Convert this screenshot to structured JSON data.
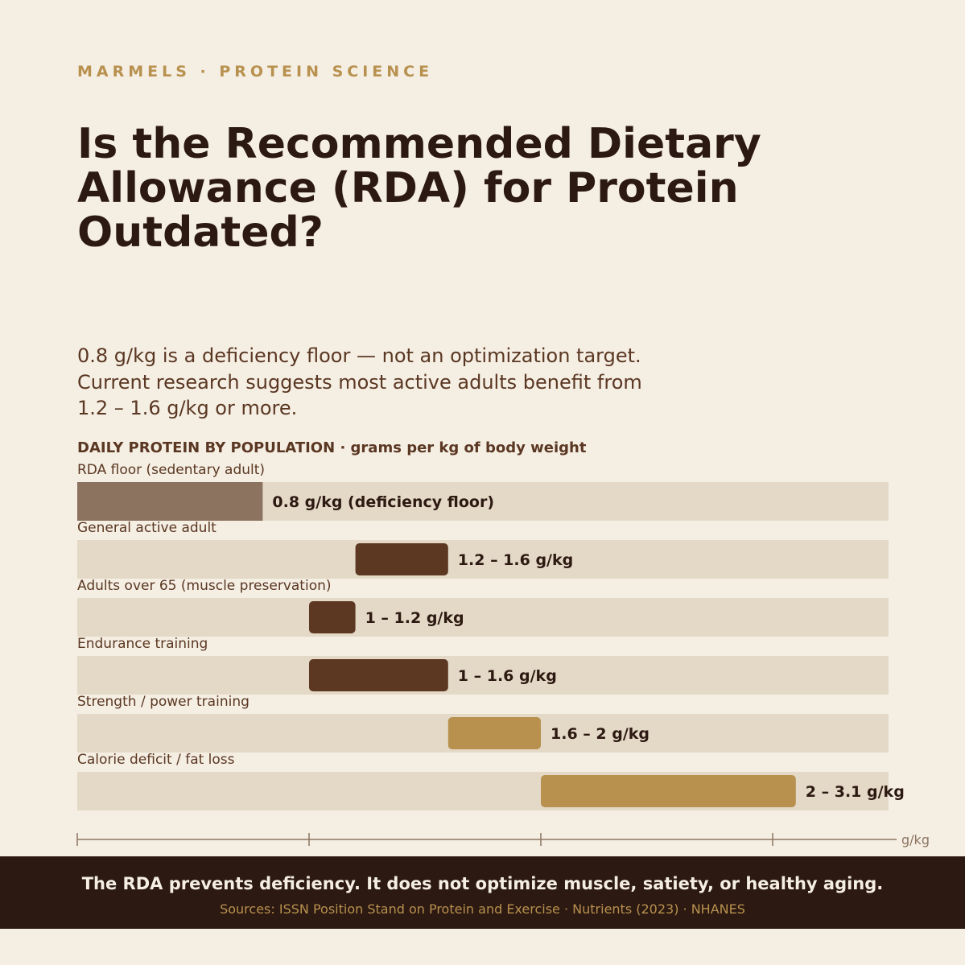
{
  "header": {
    "eyebrow": "MARMELS · PROTEIN SCIENCE",
    "title": "Is the Recommended Dietary Allowance (RDA) for Protein Outdated?",
    "lede_lines": [
      "0.8 g/kg is a deficiency floor — not an optimization target.",
      "Current research suggests most active adults benefit from",
      "1.2 – 1.6 g/kg or more."
    ]
  },
  "chart_heading": "DAILY PROTEIN BY POPULATION  ·  grams per kg of body weight",
  "colors": {
    "track": "#e4d9c7",
    "floor": "#8b7360",
    "dark": "#5c3822",
    "gold": "#b8914f",
    "axis": "#8b7560"
  },
  "chart_data": {
    "type": "bar",
    "orientation": "horizontal-range",
    "title": "DAILY PROTEIN BY POPULATION",
    "subtitle": "grams per kg of body weight",
    "x_unit": "g/kg",
    "xlim": [
      0,
      3.5
    ],
    "x_ticks": [
      0,
      1,
      2,
      3
    ],
    "tick_labels_shown": false,
    "rows": [
      {
        "category": "RDA floor (sedentary adult)",
        "low": 0,
        "high": 0.8,
        "label": "0.8 g/kg  (deficiency floor)",
        "color_key": "floor"
      },
      {
        "category": "General active adult",
        "low": 1.2,
        "high": 1.6,
        "label": "1.2 – 1.6 g/kg",
        "color_key": "dark"
      },
      {
        "category": "Adults over 65 (muscle preservation)",
        "low": 1.0,
        "high": 1.2,
        "label": "1 – 1.2 g/kg",
        "color_key": "dark"
      },
      {
        "category": "Endurance training",
        "low": 1.0,
        "high": 1.6,
        "label": "1 – 1.6 g/kg",
        "color_key": "dark"
      },
      {
        "category": "Strength / power training",
        "low": 1.6,
        "high": 2.0,
        "label": "1.6 – 2 g/kg",
        "color_key": "gold"
      },
      {
        "category": "Calorie deficit / fat loss",
        "low": 2.0,
        "high": 3.1,
        "label": "2 – 3.1 g/kg",
        "color_key": "gold"
      }
    ]
  },
  "footer": {
    "main": "The RDA prevents deficiency. It does not optimize muscle, satiety, or healthy aging.",
    "sources": "Sources: ISSN Position Stand on Protein and Exercise · Nutrients (2023) · NHANES"
  }
}
